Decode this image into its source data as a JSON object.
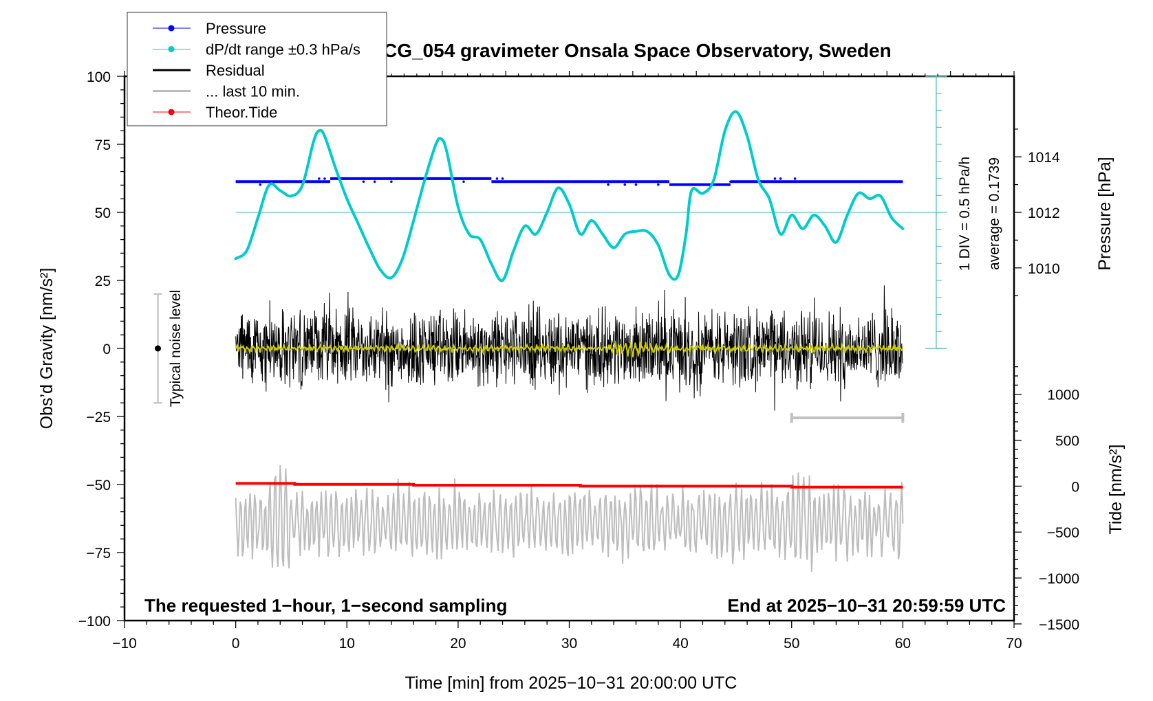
{
  "chart_data": {
    "type": "line",
    "title": "SCG_054 gravimeter Onsala Space Observatory, Sweden",
    "xlabel": "Time [min] from 2025−10−31 20:00:00 UTC",
    "ylabel": "Obs’d Gravity [nm/s²]",
    "ylabel_right_top": "Pressure [hPa]",
    "ylabel_right_bottom": "Tide [nm/s²]",
    "xlim": [
      -10,
      70
    ],
    "ylim": [
      -100,
      100
    ],
    "grid": false,
    "x_ticks": [
      -10,
      0,
      10,
      20,
      30,
      40,
      50,
      60,
      70
    ],
    "x_tick_labels": [
      "−10",
      "0",
      "10",
      "20",
      "30",
      "40",
      "50",
      "60",
      "70"
    ],
    "y_ticks": [
      100,
      75,
      50,
      25,
      0,
      -25,
      -50,
      -75,
      -100
    ],
    "y_tick_labels": [
      "100",
      "75",
      "50",
      "25",
      "0",
      "−25",
      "−50",
      "−75",
      "−100"
    ],
    "pressure_axis": {
      "ticks": [
        1014,
        1012,
        1010
      ],
      "tick_labels": [
        "1014",
        "1012",
        "1010"
      ],
      "gravity_equiv": [
        70.4,
        50,
        29.6
      ]
    },
    "tide_axis": {
      "ticks": [
        1000,
        500,
        0,
        -500,
        -1000,
        -1500
      ],
      "tick_labels": [
        "1000",
        "500",
        "0",
        "−500",
        "−1000",
        "−1500"
      ],
      "gravity_equiv": [
        -16.9,
        -33.8,
        -50.6,
        -67.5,
        -84.4,
        -101.3
      ]
    },
    "dpdt_axis": {
      "x_position": 63,
      "label": "1 DIV = 0.5 hPa/h",
      "average_label": "average = 0.1739",
      "zero_gravity_equiv": 50
    },
    "legend": {
      "placement": "top-left",
      "entries": [
        {
          "label": "Pressure",
          "color": "#0000ff",
          "marker": "dot"
        },
        {
          "label": "dP/dt range ±0.3 hPa/s",
          "color": "#00cccc",
          "marker": "dot"
        },
        {
          "label": "Residual",
          "color": "#000000",
          "marker": "line"
        },
        {
          "label": "... last 10 min.",
          "color": "#bbbbbb",
          "marker": "line"
        },
        {
          "label": "Theor.Tide",
          "color": "#ff0000",
          "marker": "dot"
        }
      ]
    },
    "annotations": {
      "bottom_left": "The requested 1−hour, 1−second sampling",
      "bottom_right": "End at 2025−10−31 20:59:59 UTC",
      "noise_label": "Typical noise level",
      "noise_center": 0,
      "noise_range": [
        -20,
        20
      ],
      "last10_bracket": [
        50,
        60
      ]
    },
    "series": [
      {
        "name": "Pressure",
        "color": "#0000ff",
        "unit": "hPa (plotted in gravity-equiv)",
        "x": [
          0,
          8.5,
          8.5,
          23,
          23,
          39,
          39,
          44.5,
          44.5,
          60
        ],
        "values": [
          61.3,
          61.3,
          62.4,
          62.4,
          61.3,
          61.3,
          60.2,
          60.2,
          61.3,
          61.3
        ]
      },
      {
        "name": "dP/dt",
        "color": "#00cccc",
        "x": [
          0,
          1,
          2,
          3,
          4,
          5,
          6,
          7,
          7.5,
          8,
          9,
          10,
          11,
          12,
          13,
          14,
          15,
          16,
          17,
          18,
          18.5,
          19,
          20,
          21,
          22,
          23,
          24,
          25,
          26,
          27,
          28,
          29,
          30,
          31,
          32,
          33,
          34,
          35,
          36,
          37,
          38,
          39,
          39.8,
          40.5,
          41,
          42,
          43,
          44,
          45,
          46,
          47,
          48,
          49,
          50,
          51,
          52,
          53,
          54,
          55,
          56,
          57,
          58,
          59,
          60
        ],
        "values": [
          33,
          36,
          48,
          60,
          58,
          56,
          60,
          76,
          80,
          78,
          66,
          55,
          46,
          37,
          29,
          26,
          33,
          47,
          62,
          75,
          77,
          72,
          52,
          42,
          40,
          31,
          25,
          36,
          45,
          42,
          50,
          59,
          53,
          42,
          47,
          42,
          37,
          42,
          43,
          43,
          38,
          27,
          27,
          42,
          58,
          57,
          62,
          80,
          87,
          78,
          62,
          55,
          42,
          49,
          44,
          49,
          45,
          39,
          49,
          57,
          55,
          56,
          48,
          44
        ]
      },
      {
        "name": "Residual",
        "color": "#000000",
        "description": "1-second noisy residual, approx ±20 nm/s² around 0 over 0-60 min",
        "range": [
          -28,
          25
        ]
      },
      {
        "name": "Residual (smoothed)",
        "color": "#cccc00",
        "description": "smoothed residual near 0, amplitude ~±2",
        "range": [
          -3,
          3
        ]
      },
      {
        "name": "... last 10 min.",
        "color": "#bbbbbb",
        "description": "last 10 minutes residual stretched over 0-60 min, offset at -65",
        "range": [
          -84,
          -42
        ]
      },
      {
        "name": "Theor.Tide",
        "color": "#ff0000",
        "unit": "nm/s²",
        "x": [
          0,
          5.3,
          5.3,
          16,
          16,
          31,
          31,
          50,
          50,
          60
        ],
        "values": [
          30,
          30,
          20,
          20,
          10,
          10,
          0,
          0,
          -10,
          -10
        ]
      }
    ]
  }
}
